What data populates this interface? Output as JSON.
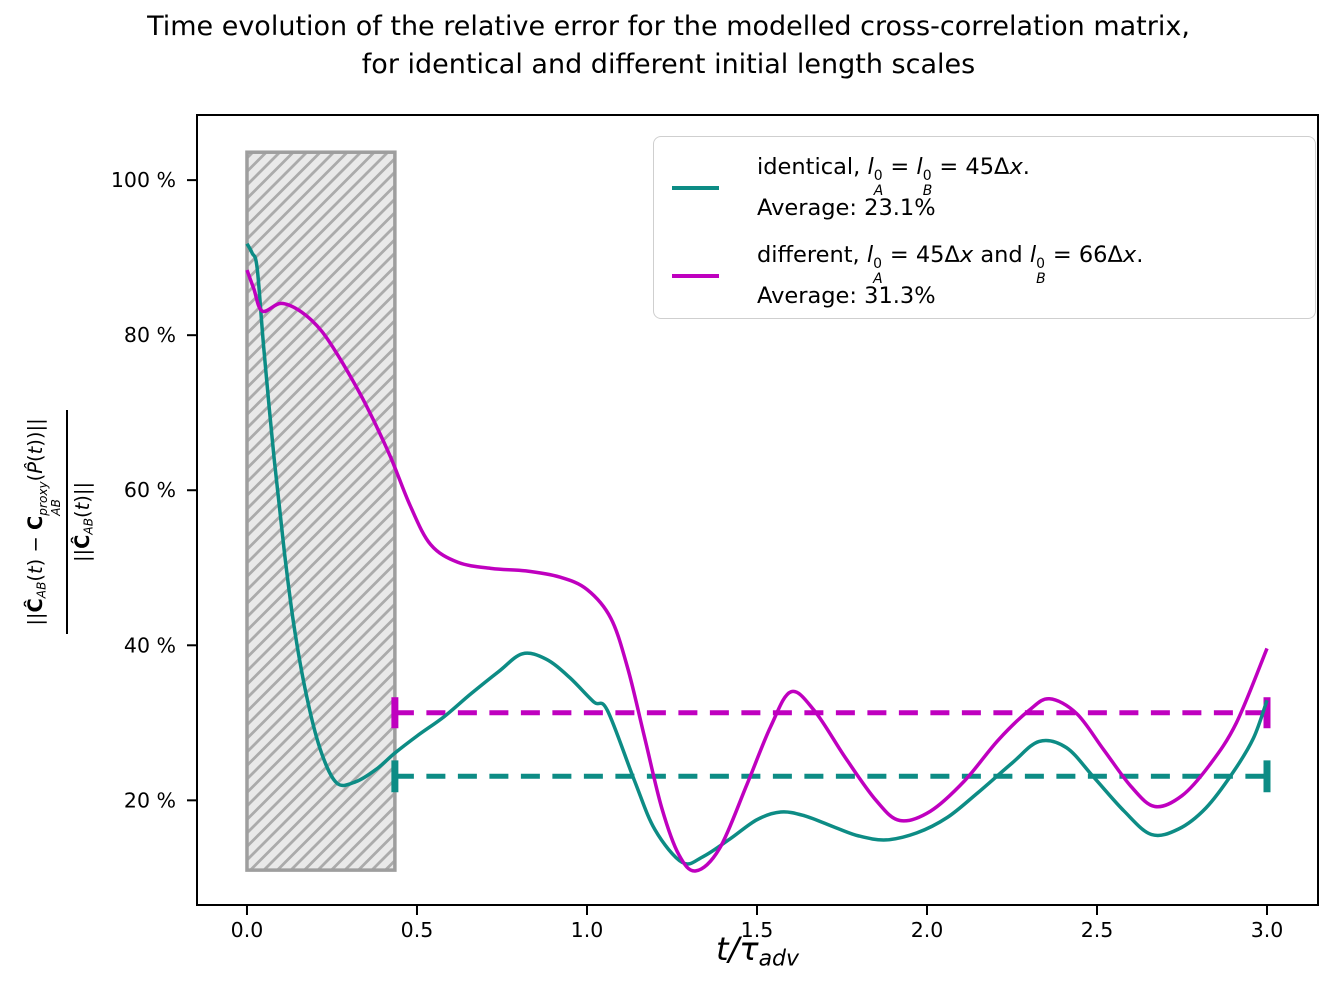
{
  "title": {
    "line1": "Time evolution of the relative error for the modelled cross-correlation matrix,",
    "line2": "for identical and different initial length scales"
  },
  "xlabel": {
    "t": "t",
    "slash": "/",
    "tau": "τ",
    "sub": "adv"
  },
  "ylabel": {
    "bar": "||",
    "C_hat": "Ĉ",
    "C": "C",
    "sub_AB": "AB",
    "sup_proxy": "proxy",
    "paren_open": "(",
    "paren_close": ")",
    "t": "t",
    "minus": " − ",
    "P_hat": "P̂"
  },
  "legend": {
    "entries": [
      {
        "name": "identical",
        "pre": "identical, ",
        "var1": "l",
        "var1_sup": "0",
        "var1_sub": "A",
        "mid_a": " = ",
        "var2": "l",
        "var2_sup": "0",
        "var2_sub": "B",
        "post_a": " = 45Δ",
        "post_x": "x",
        "post_dot": ".",
        "line2": "Average: 23.1%"
      },
      {
        "name": "different",
        "pre": "different, ",
        "var1": "l",
        "var1_sup": "0",
        "var1_sub": "A",
        "mid_a": " = 45Δ",
        "mid_x": "x",
        "mid_b": " and ",
        "var2": "l",
        "var2_sup": "0",
        "var2_sub": "B",
        "post_a": " = 66Δ",
        "post_x": "x",
        "post_dot": ".",
        "line2": "Average: 31.3%"
      }
    ]
  },
  "chart_data": {
    "type": "line",
    "title": "Time evolution of the relative error for the modelled cross-correlation matrix, for identical and different initial length scales",
    "xlabel": "t/τ_adv",
    "ylabel": "||C_AB(t) - C_AB^proxy(P(t))|| / ||C_AB(t)||",
    "grid": false,
    "legend_position": "upper right",
    "axes": {
      "x_range": [
        -0.147,
        3.15
      ],
      "y_range": [
        6.5,
        108.4
      ],
      "x_ticks": [
        0.0,
        0.5,
        1.0,
        1.5,
        2.0,
        2.5,
        3.0
      ],
      "x_tick_labels": [
        "0.0",
        "0.5",
        "1.0",
        "1.5",
        "2.0",
        "2.5",
        "3.0"
      ],
      "y_ticks": [
        20,
        40,
        60,
        80,
        100
      ],
      "y_tick_labels": [
        "20 %",
        "40 %",
        "60 %",
        "80 %",
        "100 %"
      ]
    },
    "shaded_region": {
      "x0": 0.0,
      "x1": 0.435,
      "y0": 11.0,
      "y1": 103.6,
      "fill": "#e9e9e9",
      "hatch_color": "#ababab",
      "edge_color": "#9e9e9e"
    },
    "avg_lines": [
      {
        "series": "identical",
        "value": 23.1,
        "x0": 0.435,
        "x1": 3.0,
        "cap_half": 2.05,
        "color": "#0d8c85"
      },
      {
        "series": "different",
        "value": 31.3,
        "x0": 0.435,
        "x1": 3.0,
        "cap_half": 2.0,
        "color": "#bf00bf"
      }
    ],
    "series": [
      {
        "name": "identical, l_A^0 = l_B^0 = 45Δx",
        "average_pct": 23.1,
        "color": "#0d8c85",
        "points": [
          [
            0.0,
            91.8
          ],
          [
            0.015,
            90.6
          ],
          [
            0.03,
            88.6
          ],
          [
            0.05,
            78.0
          ],
          [
            0.08,
            64.0
          ],
          [
            0.11,
            52.0
          ],
          [
            0.14,
            42.0
          ],
          [
            0.18,
            32.5
          ],
          [
            0.22,
            26.0
          ],
          [
            0.265,
            22.2
          ],
          [
            0.32,
            22.4
          ],
          [
            0.38,
            24.0
          ],
          [
            0.435,
            26.1
          ],
          [
            0.5,
            28.3
          ],
          [
            0.58,
            30.8
          ],
          [
            0.66,
            33.8
          ],
          [
            0.74,
            36.6
          ],
          [
            0.81,
            38.9
          ],
          [
            0.88,
            38.2
          ],
          [
            0.95,
            35.8
          ],
          [
            1.02,
            32.7
          ],
          [
            1.06,
            31.6
          ],
          [
            1.14,
            22.5
          ],
          [
            1.2,
            16.2
          ],
          [
            1.28,
            12.0
          ],
          [
            1.34,
            12.7
          ],
          [
            1.42,
            15.0
          ],
          [
            1.5,
            17.5
          ],
          [
            1.57,
            18.5
          ],
          [
            1.64,
            18.0
          ],
          [
            1.73,
            16.5
          ],
          [
            1.8,
            15.4
          ],
          [
            1.88,
            14.9
          ],
          [
            1.97,
            15.8
          ],
          [
            2.06,
            17.8
          ],
          [
            2.15,
            21.0
          ],
          [
            2.25,
            24.8
          ],
          [
            2.33,
            27.6
          ],
          [
            2.41,
            26.8
          ],
          [
            2.49,
            23.0
          ],
          [
            2.58,
            18.6
          ],
          [
            2.66,
            15.6
          ],
          [
            2.74,
            16.3
          ],
          [
            2.82,
            19.0
          ],
          [
            2.9,
            23.6
          ],
          [
            2.96,
            28.0
          ],
          [
            3.0,
            32.9
          ]
        ]
      },
      {
        "name": "different, l_A^0 = 45Δx and l_B^0 = 66Δx",
        "average_pct": 31.3,
        "color": "#bf00bf",
        "points": [
          [
            0.0,
            88.4
          ],
          [
            0.02,
            86.0
          ],
          [
            0.045,
            83.1
          ],
          [
            0.1,
            84.1
          ],
          [
            0.16,
            83.0
          ],
          [
            0.22,
            80.5
          ],
          [
            0.28,
            76.5
          ],
          [
            0.35,
            71.0
          ],
          [
            0.42,
            64.5
          ],
          [
            0.48,
            58.0
          ],
          [
            0.54,
            53.0
          ],
          [
            0.62,
            50.7
          ],
          [
            0.72,
            49.9
          ],
          [
            0.82,
            49.6
          ],
          [
            0.92,
            48.8
          ],
          [
            1.0,
            47.2
          ],
          [
            1.07,
            43.5
          ],
          [
            1.12,
            37.0
          ],
          [
            1.17,
            28.0
          ],
          [
            1.22,
            19.0
          ],
          [
            1.27,
            13.0
          ],
          [
            1.32,
            10.9
          ],
          [
            1.39,
            13.8
          ],
          [
            1.47,
            22.0
          ],
          [
            1.54,
            29.5
          ],
          [
            1.6,
            34.0
          ],
          [
            1.67,
            31.5
          ],
          [
            1.76,
            25.5
          ],
          [
            1.85,
            20.0
          ],
          [
            1.92,
            17.4
          ],
          [
            2.01,
            18.6
          ],
          [
            2.11,
            22.5
          ],
          [
            2.21,
            27.8
          ],
          [
            2.3,
            31.6
          ],
          [
            2.36,
            33.1
          ],
          [
            2.44,
            31.2
          ],
          [
            2.52,
            26.5
          ],
          [
            2.6,
            21.8
          ],
          [
            2.67,
            19.2
          ],
          [
            2.75,
            20.6
          ],
          [
            2.83,
            24.5
          ],
          [
            2.91,
            30.0
          ],
          [
            3.0,
            39.6
          ]
        ]
      }
    ]
  }
}
